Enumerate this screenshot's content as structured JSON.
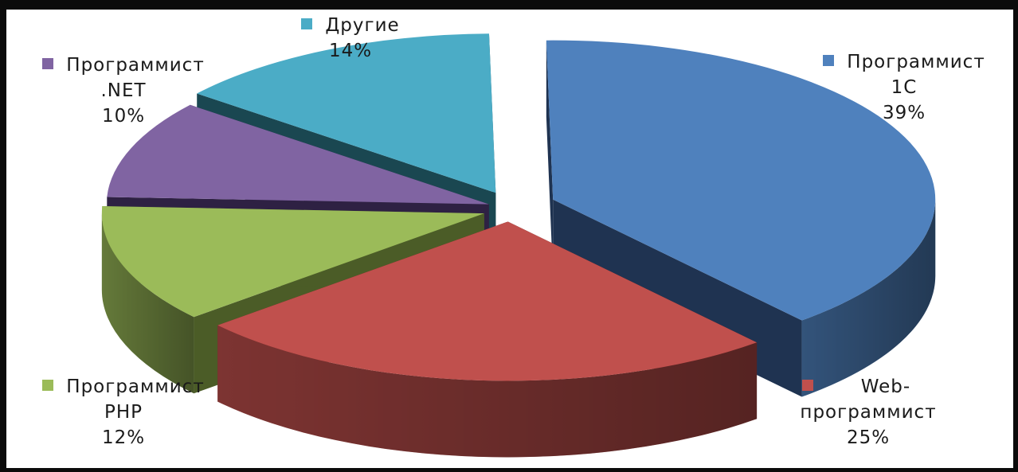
{
  "chart_data": {
    "type": "pie",
    "title": "",
    "slices": [
      {
        "label_lines": [
          "Программист",
          "1С"
        ],
        "percent_label": "39%",
        "value": 39,
        "color": "#4f81bd",
        "dark": "#1f3351"
      },
      {
        "label_lines": [
          "Web-",
          "программист"
        ],
        "percent_label": "25%",
        "value": 25,
        "color": "#c0504d",
        "dark": "#4e1716"
      },
      {
        "label_lines": [
          "Программист",
          "PHP"
        ],
        "percent_label": "12%",
        "value": 12,
        "color": "#9bbb59",
        "dark": "#4b5c27"
      },
      {
        "label_lines": [
          "Программист",
          ".NET"
        ],
        "percent_label": "10%",
        "value": 10,
        "color": "#8064a2",
        "dark": "#2e2143"
      },
      {
        "label_lines": [
          "Другие"
        ],
        "percent_label": "14%",
        "value": 14,
        "color": "#4bacc6",
        "dark": "#1a4751"
      }
    ],
    "legend": "labels-next-to-slices",
    "style": "3d-exploded"
  }
}
